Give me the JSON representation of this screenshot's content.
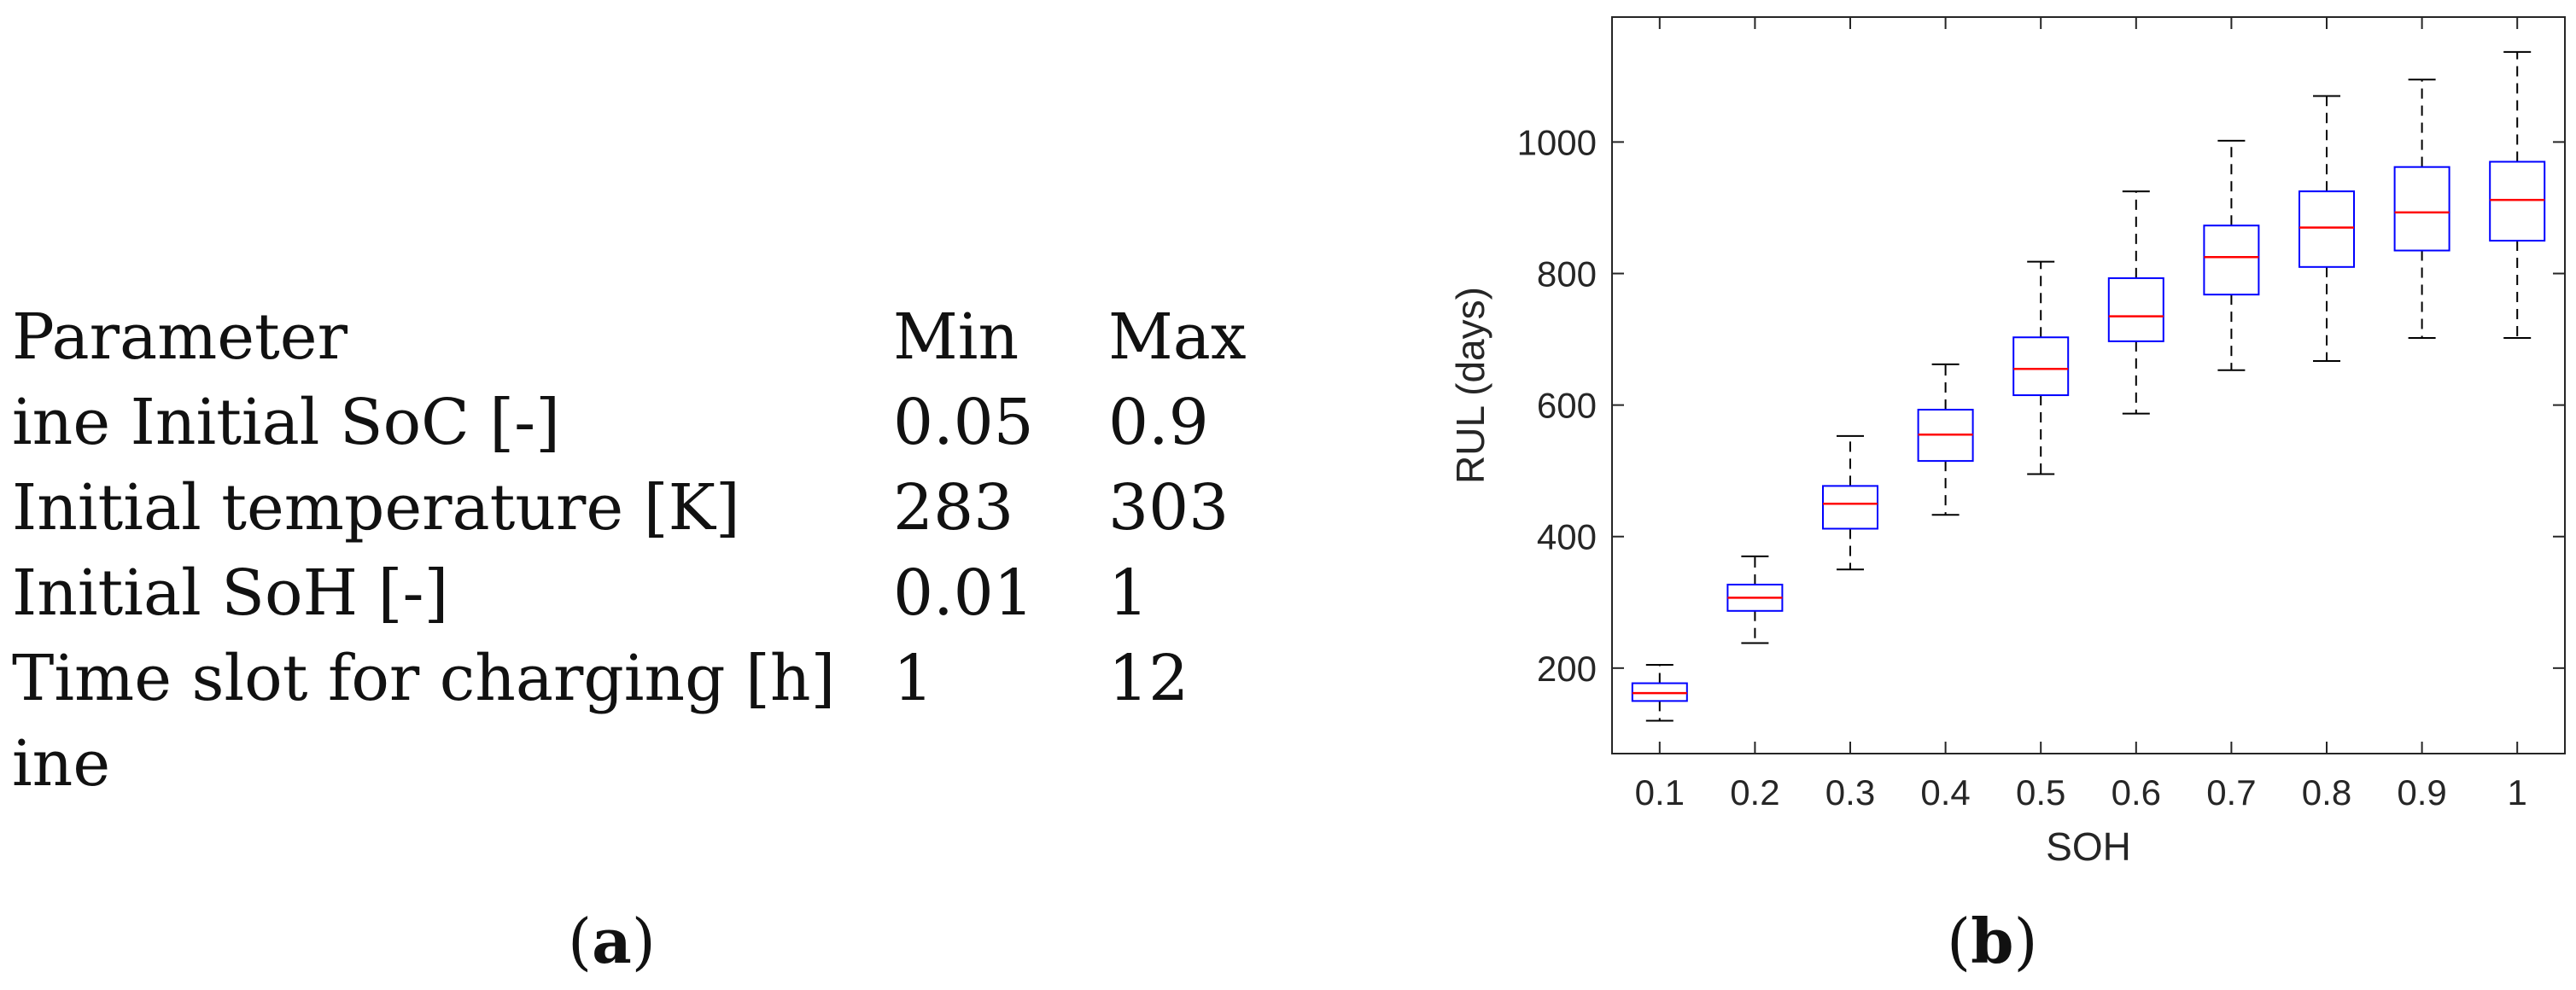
{
  "panel_a": {
    "caption_label": "a",
    "table": {
      "headers": [
        "Parameter",
        "Min",
        "Max"
      ],
      "rows": [
        [
          "ine Initial SoC [-]",
          "0.05",
          "0.9"
        ],
        [
          "Initial temperature [K]",
          "283",
          "303"
        ],
        [
          "Initial SoH [-]",
          "0.01",
          "1"
        ],
        [
          "Time slot for charging [h]",
          "1",
          "12"
        ],
        [
          "ine",
          "",
          ""
        ]
      ]
    }
  },
  "panel_b": {
    "caption_label": "b"
  },
  "chart_data": {
    "type": "box",
    "title": "",
    "xlabel": "SOH",
    "ylabel": "RUL (days)",
    "categories": [
      "0.1",
      "0.2",
      "0.3",
      "0.4",
      "0.5",
      "0.6",
      "0.7",
      "0.8",
      "0.9",
      "1"
    ],
    "ylim": [
      70,
      1190
    ],
    "yticks": [
      200,
      400,
      600,
      800,
      1000
    ],
    "ytick_labels": [
      "200",
      "400",
      "600",
      "800",
      "1000"
    ],
    "grid": false,
    "box_color": "#0000ff",
    "median_color": "#ff0000",
    "whisker_color": "#000000",
    "boxes": [
      {
        "category": "0.1",
        "whisker_low": 120,
        "q1": 150,
        "median": 162,
        "q3": 177,
        "whisker_high": 205
      },
      {
        "category": "0.2",
        "whisker_low": 238,
        "q1": 287,
        "median": 307,
        "q3": 327,
        "whisker_high": 370
      },
      {
        "category": "0.3",
        "whisker_low": 350,
        "q1": 412,
        "median": 450,
        "q3": 477,
        "whisker_high": 553
      },
      {
        "category": "0.4",
        "whisker_low": 433,
        "q1": 515,
        "median": 555,
        "q3": 593,
        "whisker_high": 662
      },
      {
        "category": "0.5",
        "whisker_low": 495,
        "q1": 615,
        "median": 655,
        "q3": 703,
        "whisker_high": 818
      },
      {
        "category": "0.6",
        "whisker_low": 587,
        "q1": 697,
        "median": 735,
        "q3": 793,
        "whisker_high": 925
      },
      {
        "category": "0.7",
        "whisker_low": 653,
        "q1": 768,
        "median": 825,
        "q3": 873,
        "whisker_high": 1002
      },
      {
        "category": "0.8",
        "whisker_low": 667,
        "q1": 810,
        "median": 870,
        "q3": 925,
        "whisker_high": 1070
      },
      {
        "category": "0.9",
        "whisker_low": 702,
        "q1": 835,
        "median": 893,
        "q3": 962,
        "whisker_high": 1095
      },
      {
        "category": "1",
        "whisker_low": 702,
        "q1": 850,
        "median": 912,
        "q3": 970,
        "whisker_high": 1137
      }
    ]
  }
}
